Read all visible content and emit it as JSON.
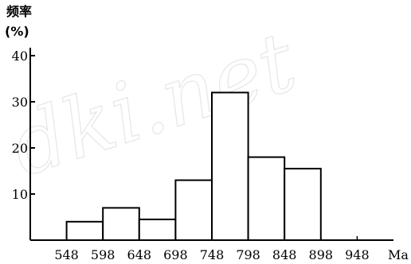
{
  "chart_data": {
    "type": "bar",
    "ylabel": "频率",
    "ylabel_unit": "(%)",
    "xlabel": "Ma",
    "x_ticks": [
      548,
      598,
      648,
      698,
      748,
      798,
      848,
      898,
      948
    ],
    "y_ticks": [
      10,
      20,
      30,
      40
    ],
    "xlim": [
      498,
      998
    ],
    "ylim": [
      0,
      40
    ],
    "bins": [
      {
        "x0": 548,
        "x1": 598,
        "value": 4
      },
      {
        "x0": 598,
        "x1": 648,
        "value": 7
      },
      {
        "x0": 648,
        "x1": 698,
        "value": 4.5
      },
      {
        "x0": 698,
        "x1": 748,
        "value": 13
      },
      {
        "x0": 748,
        "x1": 798,
        "value": 32
      },
      {
        "x0": 798,
        "x1": 848,
        "value": 18
      },
      {
        "x0": 848,
        "x1": 898,
        "value": 15.5
      }
    ],
    "grid": false,
    "bar_fill": "#ffffff",
    "bar_stroke": "#000000"
  },
  "watermark": {
    "text": "dki.net",
    "color": "#e6e6e6"
  }
}
